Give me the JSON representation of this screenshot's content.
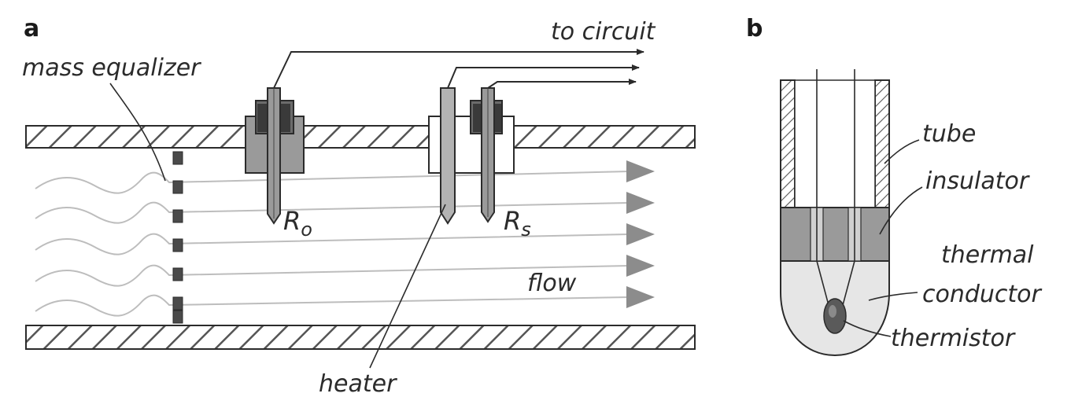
{
  "panels": {
    "a": {
      "letter": "a",
      "labels": {
        "to_circuit": "to circuit",
        "mass_equalizer": "mass equalizer",
        "flow": "flow",
        "heater": "heater"
      },
      "sensor_ro": {
        "letter": "R",
        "subscript": "o"
      },
      "sensor_rs": {
        "letter": "R",
        "subscript": "s"
      }
    },
    "b": {
      "letter": "b",
      "labels": {
        "tube": "tube",
        "insulator": "insulator",
        "thermal_line1": "thermal",
        "thermal_line2": "conductor",
        "thermistor": "thermistor"
      }
    }
  },
  "colors": {
    "stroke": "#2b2b2b",
    "hatch": "#555555",
    "gray_body": "#9a9a9a",
    "dark_body": "#4a4a4a",
    "light_fill": "#e6e6e6",
    "flow_line": "#bdbdbd",
    "arrowhead": "#8c8c8c"
  }
}
